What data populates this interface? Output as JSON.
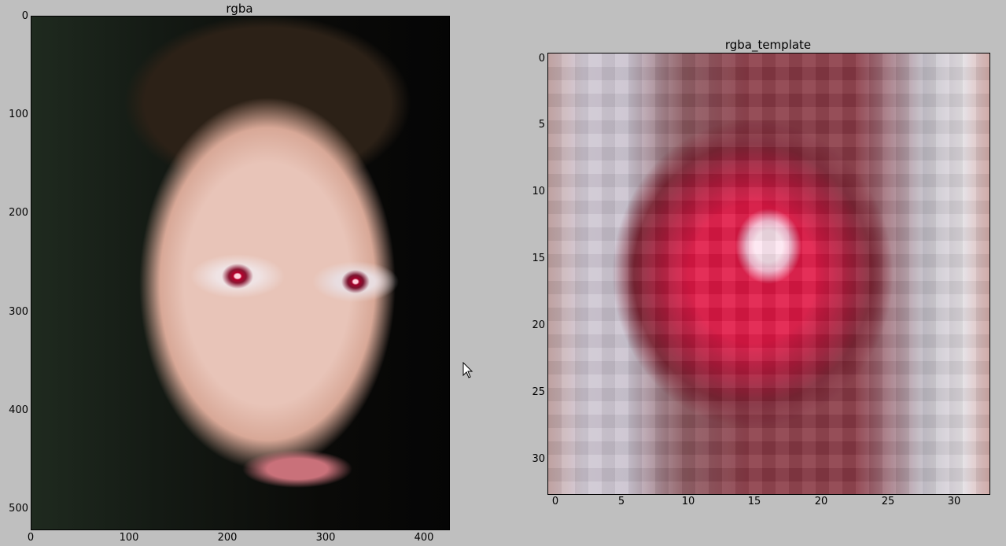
{
  "figure1": {
    "title": "rgba",
    "y_ticks": [
      "0",
      "100",
      "200",
      "300",
      "400",
      "500"
    ],
    "x_ticks": [
      "0",
      "100",
      "200",
      "300",
      "400"
    ],
    "image_description": "photo-of-boy-with-red-eyes"
  },
  "figure2": {
    "title": "rgba_template",
    "y_ticks": [
      "0",
      "5",
      "10",
      "15",
      "20",
      "25",
      "30"
    ],
    "x_ticks": [
      "0",
      "5",
      "10",
      "15",
      "20",
      "25",
      "30"
    ]
  },
  "cursor": "mouse-pointer-icon"
}
